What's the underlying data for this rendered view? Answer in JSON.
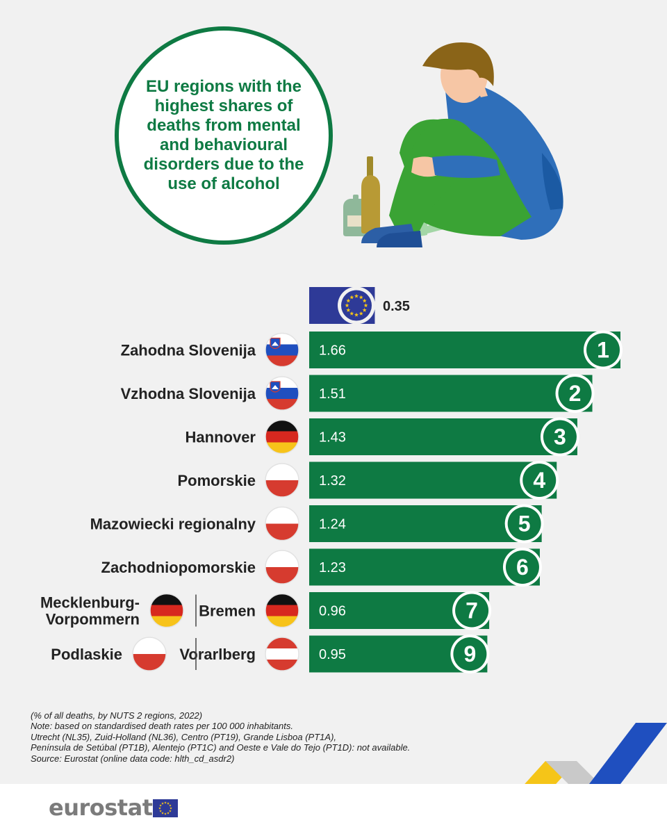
{
  "title": "EU regions with the\nhighest shares of\ndeaths from mental\nand behavioural\ndisorders due to the\nuse of alcohol",
  "colors": {
    "accent": "#0e7a43",
    "eu_blue": "#2e3a97",
    "background": "#f1f1f1",
    "yellow": "#f5c518"
  },
  "chart_data": {
    "type": "bar",
    "orientation": "horizontal",
    "eu_reference": {
      "label_icon": "eu-flag-icon",
      "value": 0.35,
      "value_label": "0.35"
    },
    "bars": [
      {
        "rank": "1",
        "value": 1.66,
        "value_label": "1.66",
        "regions": [
          {
            "name": "Zahodna Slovenija",
            "flag": "slovenia-flag-icon"
          }
        ]
      },
      {
        "rank": "2",
        "value": 1.51,
        "value_label": "1.51",
        "regions": [
          {
            "name": "Vzhodna Slovenija",
            "flag": "slovenia-flag-icon"
          }
        ]
      },
      {
        "rank": "3",
        "value": 1.43,
        "value_label": "1.43",
        "regions": [
          {
            "name": "Hannover",
            "flag": "germany-flag-icon"
          }
        ]
      },
      {
        "rank": "4",
        "value": 1.32,
        "value_label": "1.32",
        "regions": [
          {
            "name": "Pomorskie",
            "flag": "poland-flag-icon"
          }
        ]
      },
      {
        "rank": "5",
        "value": 1.24,
        "value_label": "1.24",
        "regions": [
          {
            "name": "Mazowiecki regionalny",
            "flag": "poland-flag-icon"
          }
        ]
      },
      {
        "rank": "6",
        "value": 1.23,
        "value_label": "1.23",
        "regions": [
          {
            "name": "Zachodniopomorskie",
            "flag": "poland-flag-icon"
          }
        ]
      },
      {
        "rank": "7",
        "value": 0.96,
        "value_label": "0.96",
        "regions": [
          {
            "name": "Mecklenburg-\nVorpommern",
            "flag": "germany-flag-icon"
          },
          {
            "name": "Bremen",
            "flag": "germany-flag-icon"
          }
        ]
      },
      {
        "rank": "9",
        "value": 0.95,
        "value_label": "0.95",
        "regions": [
          {
            "name": "Podlaskie",
            "flag": "poland-flag-icon"
          },
          {
            "name": "Vorarlberg",
            "flag": "austria-flag-icon"
          }
        ]
      }
    ]
  },
  "notes": [
    "(% of all deaths, by NUTS 2 regions, 2022)",
    "Note: based on standardised death rates per 100 000 inhabitants.",
    "Utrecht (NL35), Zuid-Holland (NL36), Centro (PT19), Grande Lisboa (PT1A),",
    "Península de Setúbal (PT1B), Alentejo (PT1C) and Oeste e Vale do Tejo (PT1D): not available.",
    "Source: Eurostat (online data code: hlth_cd_asdr2)"
  ],
  "footer": {
    "logo_text": "eurostat",
    "logo_icon": "eu-flag-icon"
  }
}
